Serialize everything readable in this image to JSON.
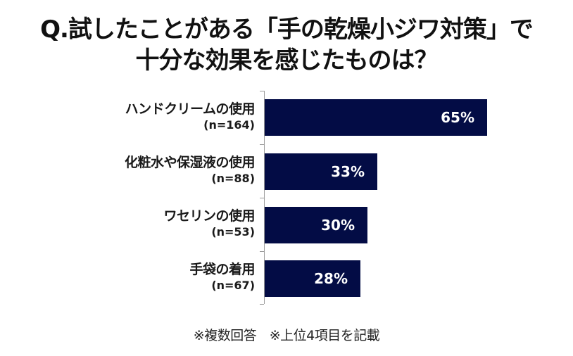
{
  "title": {
    "line1": "Q.試したことがある「手の乾燥小ジワ対策」で",
    "line2": "十分な効果を感じたものは？"
  },
  "footnote": "※複数回答　※上位4項目を記載",
  "colors": {
    "bar": "#030c45",
    "bar_text": "#ffffff",
    "axis": "#9a9a9a"
  },
  "chart_data": {
    "type": "bar",
    "orientation": "horizontal",
    "title": "Q.試したことがある「手の乾燥小ジワ対策」で十分な効果を感じたものは？",
    "categories": [
      "ハンドクリームの使用",
      "化粧水や保湿液の使用",
      "ワセリンの使用",
      "手袋の着用"
    ],
    "sample_sizes": [
      "(n=164)",
      "(n=88)",
      "(n=53)",
      "(n=67)"
    ],
    "values": [
      65,
      33,
      30,
      28
    ],
    "value_labels": [
      "65%",
      "33%",
      "30%",
      "28%"
    ],
    "unit": "%",
    "xlabel": "",
    "ylabel": "",
    "xlim": [
      0,
      100
    ],
    "grid": false,
    "legend": null,
    "annotations": [
      "※複数回答",
      "※上位4項目を記載"
    ]
  }
}
